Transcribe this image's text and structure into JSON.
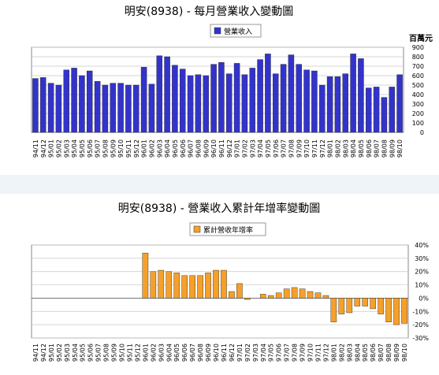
{
  "chart_data": [
    {
      "type": "bar",
      "title": "明安(8938) - 每月營業收入變動圖",
      "legend": "營業收入",
      "unit_label": "百萬元",
      "ylim": [
        0,
        900
      ],
      "y_ticks": [
        0,
        100,
        200,
        300,
        400,
        500,
        600,
        700,
        800,
        900
      ],
      "y_axis_side": "right",
      "categories": [
        "94/11",
        "94/12",
        "95/01",
        "95/02",
        "95/03",
        "95/04",
        "95/05",
        "95/06",
        "95/07",
        "95/08",
        "95/09",
        "95/10",
        "95/11",
        "95/12",
        "96/01",
        "96/02",
        "96/03",
        "96/04",
        "96/05",
        "96/06",
        "96/07",
        "96/08",
        "96/09",
        "96/10",
        "96/11",
        "96/12",
        "97/01",
        "97/02",
        "97/03",
        "97/04",
        "97/05",
        "97/06",
        "97/07",
        "97/08",
        "97/09",
        "97/10",
        "97/11",
        "97/12",
        "98/01",
        "98/02",
        "98/03",
        "98/04",
        "98/05",
        "98/06",
        "98/07",
        "98/08",
        "98/09",
        "98/10"
      ],
      "values": [
        570,
        580,
        520,
        500,
        660,
        680,
        600,
        650,
        540,
        500,
        520,
        520,
        500,
        500,
        690,
        510,
        810,
        800,
        710,
        670,
        600,
        610,
        600,
        720,
        740,
        620,
        730,
        610,
        680,
        770,
        830,
        620,
        720,
        820,
        720,
        660,
        650,
        500,
        590,
        590,
        620,
        830,
        780,
        470,
        480,
        370,
        480,
        610
      ],
      "bar_color": "#3333cc",
      "grid": true
    },
    {
      "type": "bar",
      "title": "明安(8938) -  營業收入累計年增率變動圖",
      "legend": "累計營收年增率",
      "ylim": [
        -30,
        40
      ],
      "y_ticks": [
        40,
        30,
        20,
        10,
        0,
        -10,
        -20,
        -30
      ],
      "y_tick_labels": [
        "40%",
        "30%",
        "20%",
        "10%",
        "0%",
        "-10%",
        "-20%",
        "-30%"
      ],
      "y_axis_side": "right",
      "categories": [
        "94/11",
        "94/12",
        "95/01",
        "95/02",
        "95/03",
        "95/04",
        "95/05",
        "95/06",
        "95/07",
        "95/08",
        "95/09",
        "95/10",
        "95/11",
        "95/12",
        "96/01",
        "96/02",
        "96/03",
        "96/04",
        "96/05",
        "96/06",
        "96/07",
        "96/08",
        "96/09",
        "96/10",
        "96/11",
        "96/12",
        "97/01",
        "97/02",
        "97/03",
        "97/04",
        "97/05",
        "97/06",
        "97/07",
        "97/08",
        "97/09",
        "97/10",
        "97/11",
        "97/12",
        "98/01",
        "98/02",
        "98/03",
        "98/04",
        "98/05",
        "98/06",
        "98/07",
        "98/08",
        "98/09",
        "98/10"
      ],
      "values": [
        0,
        0,
        0,
        0,
        0,
        0,
        0,
        0,
        0,
        0,
        0,
        0,
        0,
        0,
        34,
        20,
        21,
        20,
        19,
        17,
        17,
        17,
        19,
        21,
        21,
        5,
        11,
        -1,
        0,
        3,
        2,
        4,
        7,
        8,
        7,
        5,
        4,
        2,
        -18,
        -12,
        -11,
        -6,
        -6,
        -8,
        -12,
        -18,
        -20,
        -19
      ],
      "bar_color": "#f5a02a",
      "grid": true
    }
  ]
}
